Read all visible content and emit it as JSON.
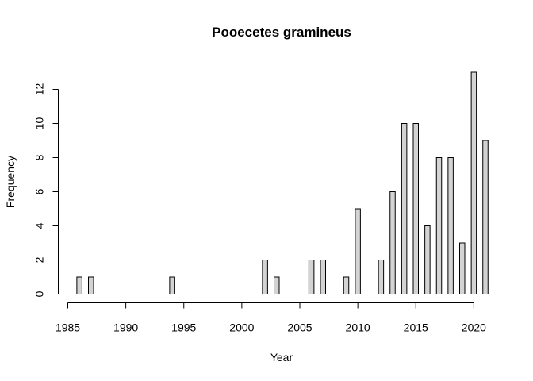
{
  "chart_data": {
    "type": "bar",
    "title": "Pooecetes gramineus",
    "xlabel": "Year",
    "ylabel": "Frequency",
    "xlim": [
      1985,
      2021
    ],
    "ylim": [
      0,
      13
    ],
    "x_ticks": [
      1985,
      1990,
      1995,
      2000,
      2005,
      2010,
      2015,
      2020
    ],
    "y_ticks": [
      0,
      2,
      4,
      6,
      8,
      10,
      12
    ],
    "grid": false,
    "legend": "none",
    "bar_color": "#d3d3d3",
    "x": [
      1986,
      1987,
      1988,
      1989,
      1990,
      1991,
      1992,
      1993,
      1994,
      1995,
      1996,
      1997,
      1998,
      1999,
      2000,
      2001,
      2002,
      2003,
      2004,
      2005,
      2006,
      2007,
      2008,
      2009,
      2010,
      2011,
      2012,
      2013,
      2014,
      2015,
      2016,
      2017,
      2018,
      2019,
      2020,
      2021
    ],
    "values": [
      1,
      1,
      0,
      0,
      0,
      0,
      0,
      0,
      1,
      0,
      0,
      0,
      0,
      0,
      0,
      0,
      2,
      1,
      0,
      0,
      2,
      2,
      0,
      1,
      5,
      0,
      2,
      6,
      10,
      10,
      4,
      8,
      8,
      3,
      13,
      9
    ]
  }
}
